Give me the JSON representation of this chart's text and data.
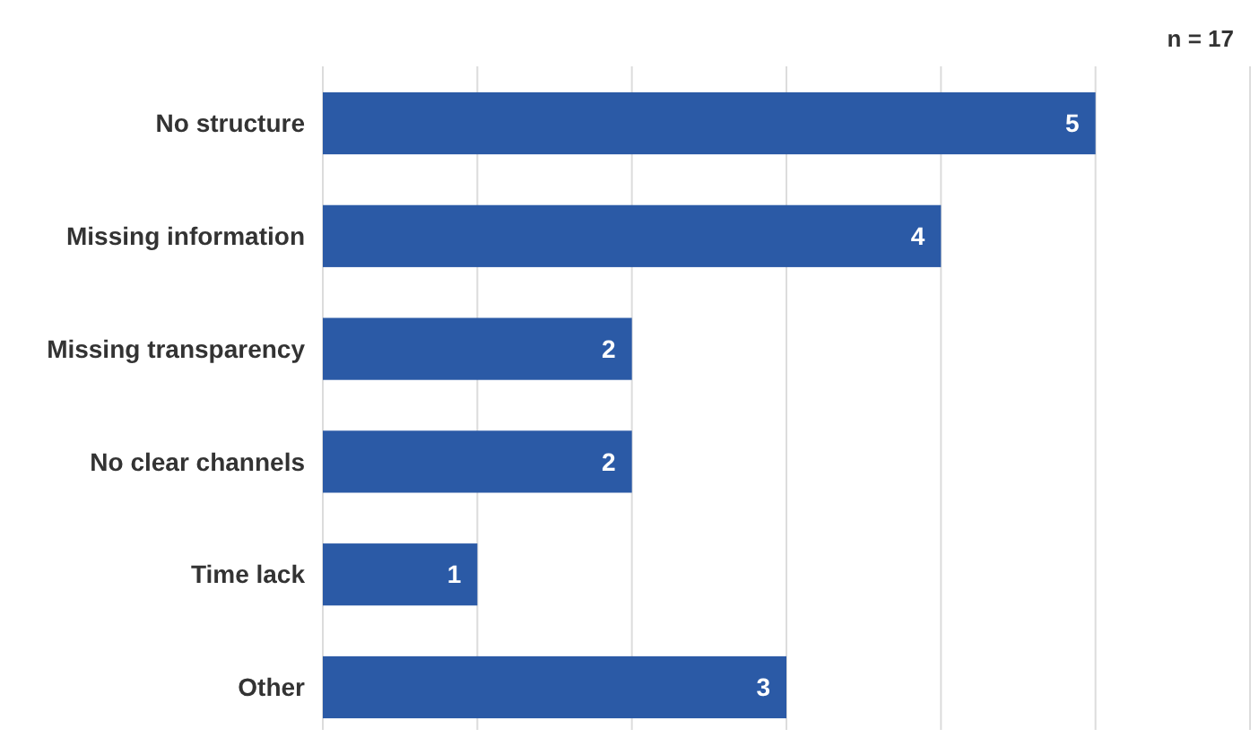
{
  "chart_data": {
    "type": "bar",
    "orientation": "horizontal",
    "categories": [
      "No structure",
      "Missing information",
      "Missing transparency",
      "No clear channels",
      "Time lack",
      "Other"
    ],
    "values": [
      5,
      4,
      2,
      2,
      1,
      3
    ],
    "color": "#2b5aa6",
    "xlim": [
      0,
      6
    ],
    "xticks": [
      {
        "value": 0,
        "label": null
      },
      {
        "value": 1,
        "label": null
      },
      {
        "value": 2,
        "label": null
      },
      {
        "value": 3,
        "label": null
      },
      {
        "value": 4,
        "label": null
      },
      {
        "value": 5,
        "label": null
      },
      {
        "value": 6,
        "label": null
      }
    ],
    "grid": "x",
    "tick_labels": "y",
    "data_labels": true,
    "annotations": [
      "n = 17"
    ]
  }
}
